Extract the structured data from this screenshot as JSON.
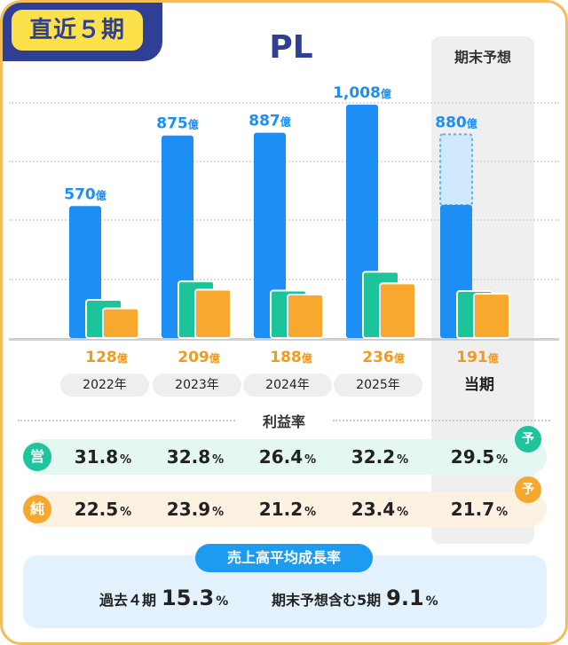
{
  "period_label": "直近５期",
  "chart_data": {
    "type": "bar",
    "title": "PL",
    "unit": "億",
    "ylim": [
      0,
      1050
    ],
    "grid": true,
    "categories": [
      "2022年",
      "2023年",
      "2024年",
      "2025年",
      "当期"
    ],
    "series": [
      {
        "values": [
          570,
          875,
          887,
          1008,
          880
        ],
        "color": "#1c8ef4"
      },
      {
        "values": [
          165,
          245,
          205,
          286,
          203
        ],
        "color": "#1dc49a"
      },
      {
        "values": [
          128,
          209,
          188,
          236,
          191
        ],
        "color": "#f8a92d"
      }
    ],
    "top_labels": [
      "570",
      "875",
      "887",
      "1,008",
      "880"
    ],
    "bottom_labels": [
      "128",
      "209",
      "188",
      "236",
      "191"
    ],
    "forecast_label": "期末予想",
    "forecast_actual_value": 575
  },
  "ratios": {
    "title": "利益率",
    "operating": {
      "badge": "営",
      "values": [
        "31.8",
        "32.8",
        "26.4",
        "32.2",
        "29.5"
      ]
    },
    "net": {
      "badge": "純",
      "values": [
        "22.5",
        "23.9",
        "21.2",
        "23.4",
        "21.7"
      ]
    },
    "forecast_mark": "予",
    "pct": "%"
  },
  "cagr": {
    "title": "売上高平均成長率",
    "past_label": "過去４期",
    "past_value": "15.3",
    "forecast_label": "期末予想含む5期",
    "forecast_value": "9.1",
    "pct": "%"
  },
  "colors": {
    "navy": "#2f3f95",
    "blue": "#1c8ef4",
    "green": "#1dc49a",
    "orange": "#f8a92d",
    "yellow": "#fde14a",
    "border": "#f5bd58"
  }
}
